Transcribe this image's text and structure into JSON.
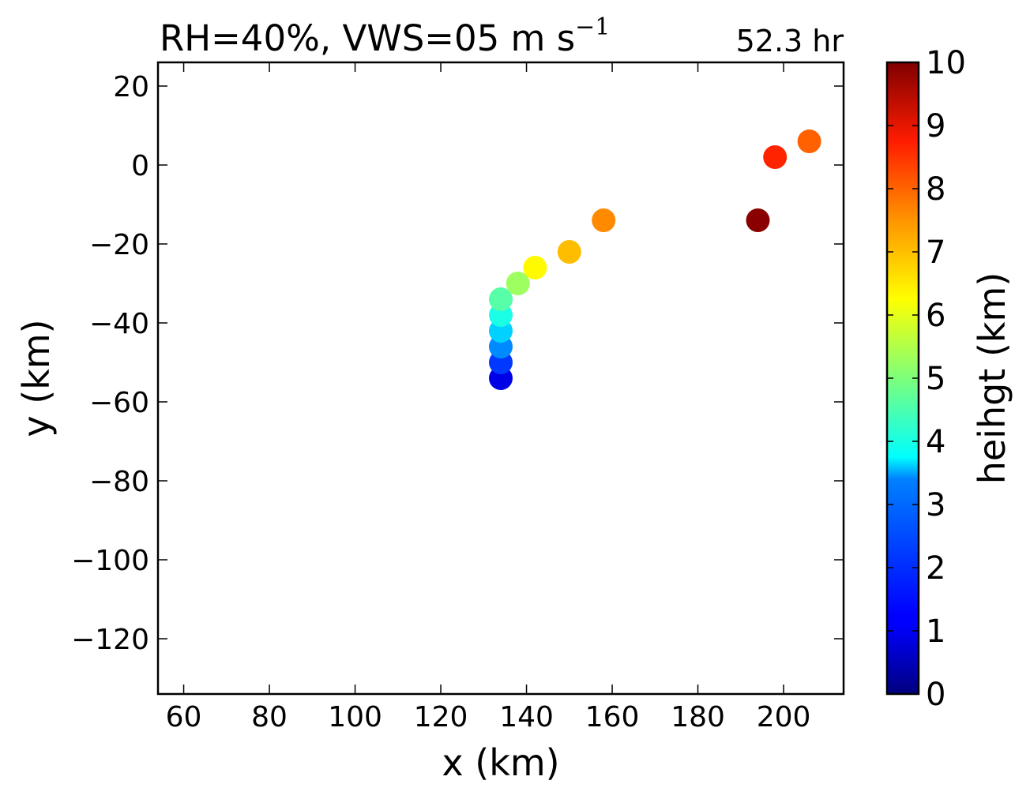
{
  "chart_data": {
    "type": "scatter",
    "title": "RH=40%, VWS=05 m s",
    "title_superscript": "−1",
    "annotation": {
      "text": "52.3 hr",
      "color": "#0000ff"
    },
    "xlabel": "x (km)",
    "ylabel": "y (km)",
    "xlim": [
      54,
      214
    ],
    "ylim": [
      -134,
      26
    ],
    "xticks": [
      60,
      80,
      100,
      120,
      140,
      160,
      180,
      200
    ],
    "xtick_labels": [
      "60",
      "80",
      "100",
      "120",
      "140",
      "160",
      "180",
      "200"
    ],
    "yticks": [
      20,
      0,
      -20,
      -40,
      -60,
      -80,
      -100,
      -120
    ],
    "ytick_labels": [
      "20",
      "0",
      "−20",
      "−40",
      "−60",
      "−80",
      "−100",
      "−120"
    ],
    "grid": false,
    "colormap": "jet",
    "colorbar": {
      "label": "heihgt (km)",
      "range": [
        0,
        10
      ],
      "ticks": [
        0,
        1,
        2,
        3,
        4,
        5,
        6,
        7,
        8,
        9,
        10
      ],
      "tick_labels": [
        "0",
        "1",
        "2",
        "3",
        "4",
        "5",
        "6",
        "7",
        "8",
        "9",
        "10"
      ]
    },
    "points": [
      {
        "x": 134,
        "y": -54,
        "height": 1.0
      },
      {
        "x": 134,
        "y": -50,
        "height": 1.8
      },
      {
        "x": 134,
        "y": -46,
        "height": 2.6
      },
      {
        "x": 134,
        "y": -42,
        "height": 3.3
      },
      {
        "x": 134,
        "y": -38,
        "height": 4.0
      },
      {
        "x": 134,
        "y": -34,
        "height": 4.6
      },
      {
        "x": 138,
        "y": -30,
        "height": 5.3
      },
      {
        "x": 142,
        "y": -26,
        "height": 6.3
      },
      {
        "x": 150,
        "y": -22,
        "height": 6.9
      },
      {
        "x": 158,
        "y": -14,
        "height": 7.4
      },
      {
        "x": 194,
        "y": -14,
        "height": 9.9
      },
      {
        "x": 198,
        "y": 2,
        "height": 8.4
      },
      {
        "x": 206,
        "y": 6,
        "height": 7.8
      }
    ]
  }
}
